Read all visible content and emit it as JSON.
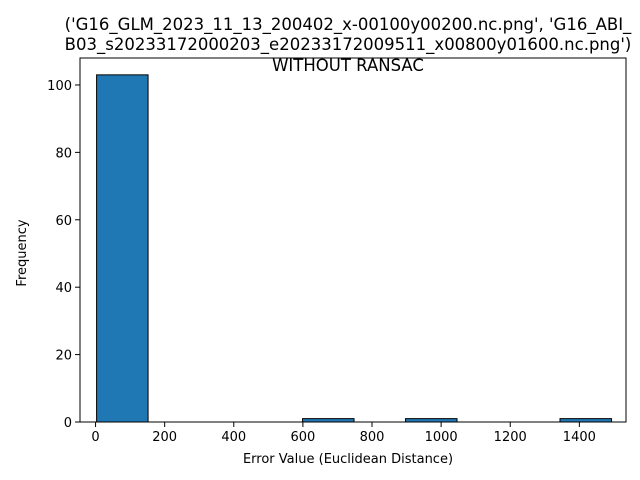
{
  "chart_data": {
    "type": "bar",
    "title_lines": [
      "('G16_GLM_2023_11_13_200402_x-00100y00200.nc.png', 'G16_ABI_",
      "B03_s20233172000203_e20233172009511_x00800y01600.nc.png')",
      "WITHOUT RANSAC"
    ],
    "xlabel": "Error Value (Euclidean Distance)",
    "ylabel": "Frequency",
    "xlim": [
      -45,
      1535
    ],
    "ylim": [
      0,
      108
    ],
    "xticks": [
      0,
      200,
      400,
      600,
      800,
      1000,
      1200,
      1400
    ],
    "yticks": [
      0,
      20,
      40,
      60,
      80,
      100
    ],
    "bin_edges": [
      3,
      152,
      301,
      450,
      599,
      748,
      897,
      1046,
      1195,
      1344,
      1493
    ],
    "counts": [
      103,
      0,
      0,
      0,
      1,
      0,
      1,
      0,
      0,
      1
    ],
    "bar_color": "#1f77b4",
    "edge_color": "#000000",
    "grid": false
  }
}
